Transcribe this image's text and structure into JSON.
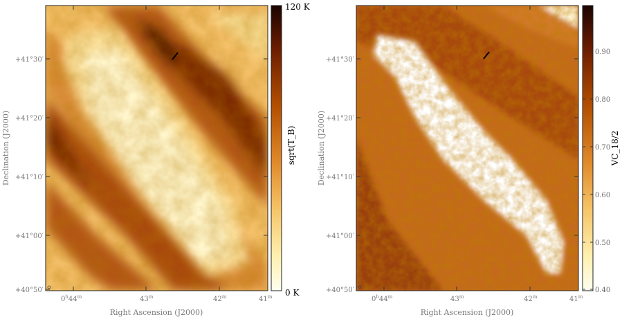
{
  "left_panel": {
    "y_axis_label": "Declination (J2000)",
    "x_axis_label": "Right Ascension (J2000)",
    "y_ticks": [
      {
        "main": "+41°30′",
        "value_deg": 41.5
      },
      {
        "main": "+41°20′",
        "value_deg": 41.3333
      },
      {
        "main": "+41°10′",
        "value_deg": 41.1667
      },
      {
        "main": "+41°00′",
        "value_deg": 41.0
      },
      {
        "main": "+40°50′",
        "value_deg": 40.8333
      }
    ],
    "x_ticks": [
      {
        "main": "0",
        "sup1": "h",
        "main2": "44",
        "sup2": "m"
      },
      {
        "main": "43",
        "sup1": "m"
      },
      {
        "main": "42",
        "sup1": "m"
      },
      {
        "main": "41",
        "sup1": "m"
      }
    ],
    "colorbar": {
      "label": "sqrt(T_B)",
      "max_label": "120 K",
      "min_label": "0 K",
      "colormap": [
        "#1a0400",
        "#6b1c00",
        "#b24e00",
        "#e08a2a",
        "#f6c66a",
        "#fff0b0",
        "#fffef0"
      ]
    }
  },
  "right_panel": {
    "y_axis_label": "Declination (J2000)",
    "x_axis_label": "Right Ascension (J2000)",
    "y_ticks": [
      {
        "main": "+41°30′"
      },
      {
        "main": "+41°20′"
      },
      {
        "main": "+41°10′"
      },
      {
        "main": "+41°00′"
      },
      {
        "main": "+40°50′"
      }
    ],
    "x_ticks": [
      {
        "main": "0",
        "sup1": "h",
        "main2": "44",
        "sup2": "m"
      },
      {
        "main": "43",
        "sup1": "m"
      },
      {
        "main": "42",
        "sup1": "m"
      },
      {
        "main": "41",
        "sup1": "m"
      }
    ],
    "colorbar": {
      "label": "VC_18/2",
      "ticks": [
        "0.90",
        "0.80",
        "0.70",
        "0.60",
        "0.50",
        "0.40"
      ],
      "colormap": [
        "#1a0400",
        "#6b1c00",
        "#b24e00",
        "#e08a2a",
        "#f6c66a",
        "#fff0b0",
        "#fffef0"
      ]
    }
  }
}
